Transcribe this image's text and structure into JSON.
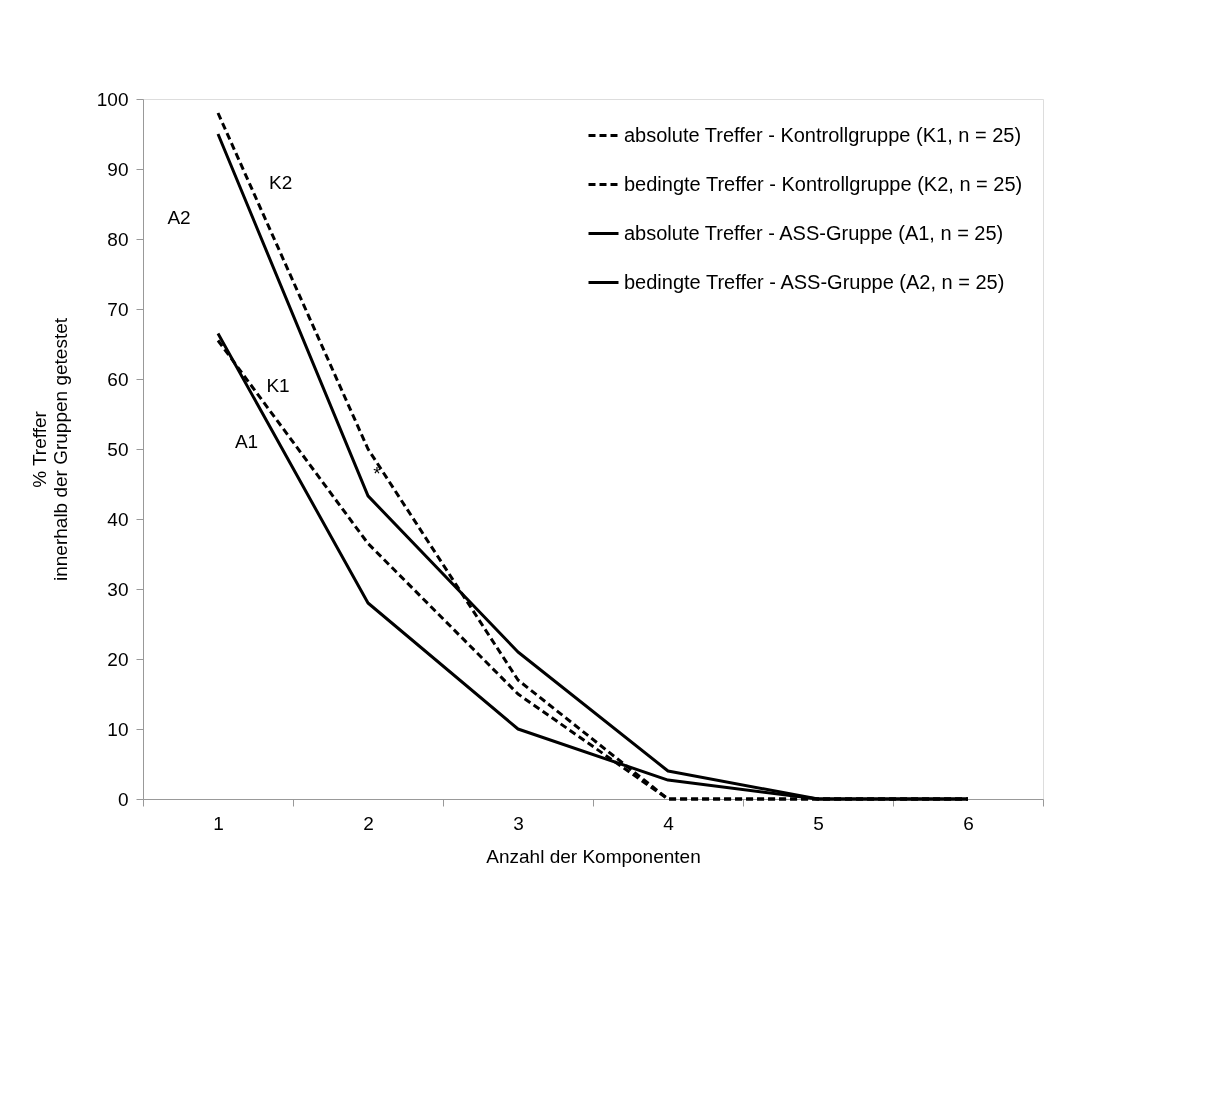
{
  "chart_data": {
    "type": "line",
    "xlabel": "Anzahl der Komponenten",
    "ylabel": "% Treffer\ninnerhalb der Gruppen getestet",
    "categories": [
      "1",
      "2",
      "3",
      "4",
      "5",
      "6"
    ],
    "series": [
      {
        "name": "absolute Treffer - Kontrollgruppe (K1, n = 25)",
        "color": "#000000",
        "line_style": "dashed",
        "values": [
          65.5,
          36.5,
          15,
          0,
          0,
          0
        ]
      },
      {
        "name": "bedingte Treffer - Kontrollgruppe (K2, n = 25)",
        "color": "#000000",
        "line_style": "dashed",
        "values": [
          98,
          50,
          17,
          0,
          0,
          0
        ]
      },
      {
        "name": "absolute Treffer - ASS-Gruppe (A1, n = 25)",
        "color": "#000000",
        "line_style": "solid",
        "values": [
          66.5,
          28,
          10,
          2.7,
          0,
          0
        ]
      },
      {
        "name": "bedingte Treffer - ASS-Gruppe (A2, n = 25)",
        "color": "#000000",
        "line_style": "solid",
        "values": [
          95,
          43.3,
          21,
          4,
          0,
          0
        ]
      }
    ],
    "ylim": [
      0,
      100
    ],
    "yticks": [
      0,
      10,
      20,
      30,
      40,
      50,
      60,
      70,
      80,
      90,
      100
    ],
    "annotations": [
      "K2",
      "A2",
      "K1",
      "A1",
      "*"
    ],
    "legend": "top right",
    "grid": false,
    "marker": "none"
  }
}
